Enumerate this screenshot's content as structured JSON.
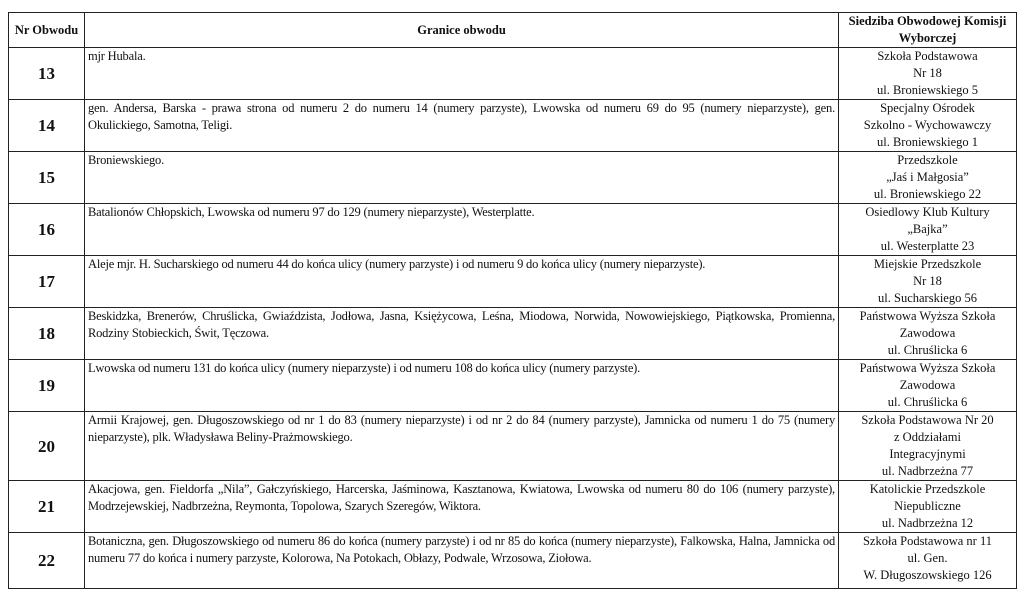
{
  "headers": {
    "nr": "Nr Obwodu",
    "granice": "Granice obwodu",
    "siedziba": "Siedziba Obwodowej Komisji Wyborczej"
  },
  "rows": [
    {
      "nr": "13",
      "granice": "mjr Hubala.",
      "siedziba": [
        "Szkoła Podstawowa",
        "Nr 18",
        "ul. Broniewskiego 5"
      ]
    },
    {
      "nr": "14",
      "granice": "gen. Andersa, Barska - prawa strona od numeru 2 do numeru 14 (numery parzyste), Lwowska od numeru 69 do 95 (numery nieparzyste), gen. Okulickiego, Samotna, Teligi.",
      "siedziba": [
        "Specjalny Ośrodek",
        "Szkolno - Wychowawczy",
        "ul. Broniewskiego 1"
      ]
    },
    {
      "nr": "15",
      "granice": "Broniewskiego.",
      "siedziba": [
        "Przedszkole",
        "„Jaś i Małgosia”",
        "ul. Broniewskiego 22"
      ]
    },
    {
      "nr": "16",
      "granice": "Batalionów Chłopskich, Lwowska od numeru 97 do 129 (numery nieparzyste), Westerplatte.",
      "siedziba": [
        "Osiedlowy Klub Kultury",
        "„Bajka”",
        "ul. Westerplatte 23"
      ]
    },
    {
      "nr": "17",
      "granice": "Aleje mjr. H. Sucharskiego od numeru 44 do końca ulicy (numery parzyste) i od numeru 9 do końca ulicy (numery nieparzyste).",
      "siedziba": [
        "Miejskie Przedszkole",
        "Nr 18",
        "ul. Sucharskiego 56"
      ]
    },
    {
      "nr": "18",
      "granice": "Beskidzka, Brenerów, Chruślicka, Gwiaździsta, Jodłowa, Jasna, Księżycowa, Leśna, Miodowa, Norwida, Nowowiejskiego, Piątkowska, Promienna, Rodziny Stobieckich, Świt, Tęczowa.",
      "siedziba": [
        "Państwowa Wyższa Szkoła",
        "Zawodowa",
        "ul. Chruślicka 6"
      ]
    },
    {
      "nr": "19",
      "granice": "Lwowska od numeru 131 do końca ulicy (numery nieparzyste) i od numeru 108 do końca ulicy (numery parzyste).",
      "siedziba": [
        "Państwowa Wyższa Szkoła",
        "Zawodowa",
        "ul. Chruślicka 6"
      ]
    },
    {
      "nr": "20",
      "granice": "Armii Krajowej, gen. Długoszowskiego od nr 1 do 83 (numery nieparzyste) i od nr 2 do 84 (numery parzyste), Jamnicka od numeru 1 do 75 (numery nieparzyste), plk. Władysława Beliny-Prażmowskiego.",
      "siedziba": [
        "Szkoła Podstawowa Nr 20",
        "z Oddziałami",
        "Integracyjnymi",
        "ul. Nadbrzeżna 77"
      ]
    },
    {
      "nr": "21",
      "granice": "Akacjowa, gen. Fieldorfa „Nila”, Gałczyńskiego, Harcerska, Jaśminowa, Kasztanowa, Kwiatowa, Lwowska od numeru 80 do 106 (numery parzyste), Modrzejewskiej, Nadbrzeżna, Reymonta, Topolowa, Szarych Szeregów, Wiktora.",
      "siedziba": [
        "Katolickie Przedszkole",
        "Niepubliczne",
        "ul. Nadbrzeżna 12"
      ]
    },
    {
      "nr": "22",
      "granice": "Botaniczna, gen. Długoszowskiego od numeru 86 do końca (numery parzyste) i od nr 85 do końca (numery nieparzyste), Falkowska, Halna, Jamnicka od numeru 77 do końca i numery parzyste, Kolorowa, Na Potokach, Obłazy, Podwale, Wrzosowa, Ziołowa.",
      "siedziba": [
        "Szkoła Podstawowa nr 11",
        "ul. Gen.",
        "W. Długoszowskiego 126"
      ]
    }
  ]
}
